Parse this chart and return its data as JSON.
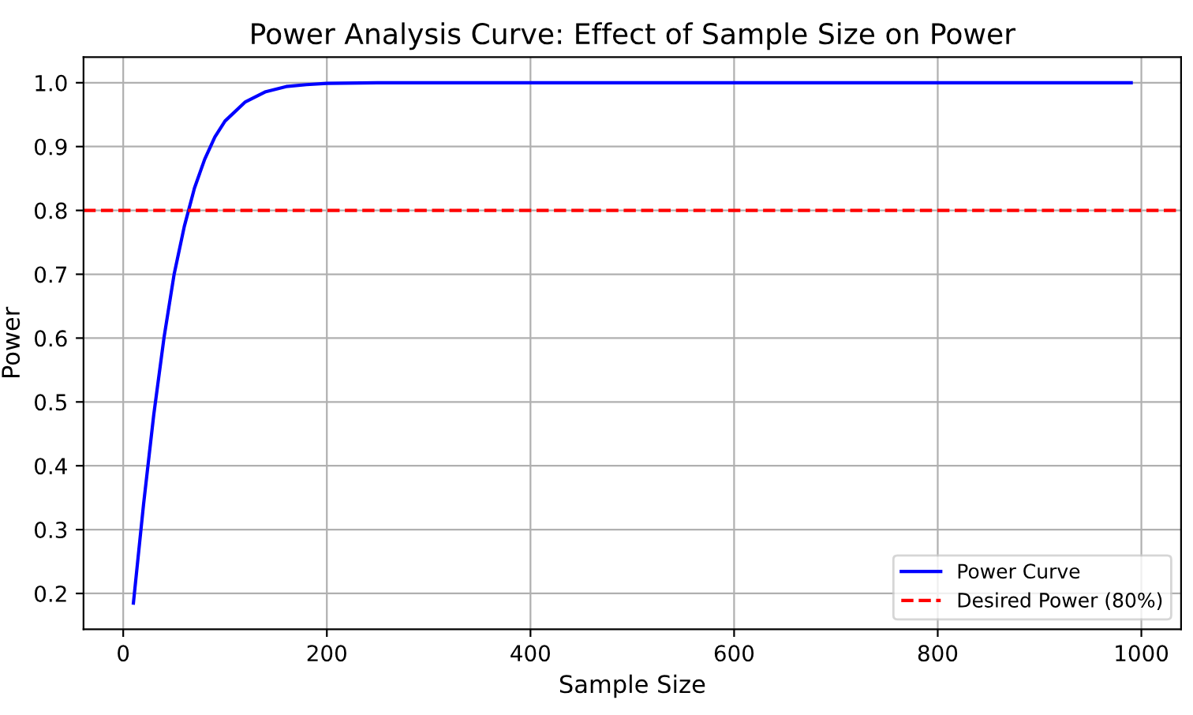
{
  "chart_data": {
    "type": "line",
    "title": "Power Analysis Curve: Effect of Sample Size on Power",
    "xlabel": "Sample Size",
    "ylabel": "Power",
    "series": [
      {
        "name": "Power Curve",
        "color": "#0000ff",
        "x": [
          10,
          20,
          30,
          40,
          50,
          60,
          70,
          80,
          90,
          100,
          120,
          140,
          160,
          180,
          200,
          250,
          300,
          400,
          600,
          800,
          990
        ],
        "values": [
          0.185,
          0.34,
          0.48,
          0.6,
          0.7,
          0.775,
          0.835,
          0.88,
          0.915,
          0.94,
          0.97,
          0.986,
          0.994,
          0.997,
          0.999,
          1.0,
          1.0,
          1.0,
          1.0,
          1.0,
          1.0
        ]
      }
    ],
    "ref_lines": [
      {
        "axis": "y",
        "value": 0.8,
        "label": "Desired Power (80%)",
        "color": "#ff0000",
        "line_style": "dashed"
      }
    ],
    "xlim": [
      -39,
      1039
    ],
    "ylim": [
      0.144,
      1.04
    ],
    "xticks": [
      0,
      200,
      400,
      600,
      800,
      1000
    ],
    "yticks": [
      0.2,
      0.3,
      0.4,
      0.5,
      0.6,
      0.7,
      0.8,
      0.9,
      {
        "value": 1.0,
        "label": "1.0"
      }
    ],
    "grid": true,
    "legend": "bottom right",
    "line_style": "solid",
    "marker": "none"
  }
}
